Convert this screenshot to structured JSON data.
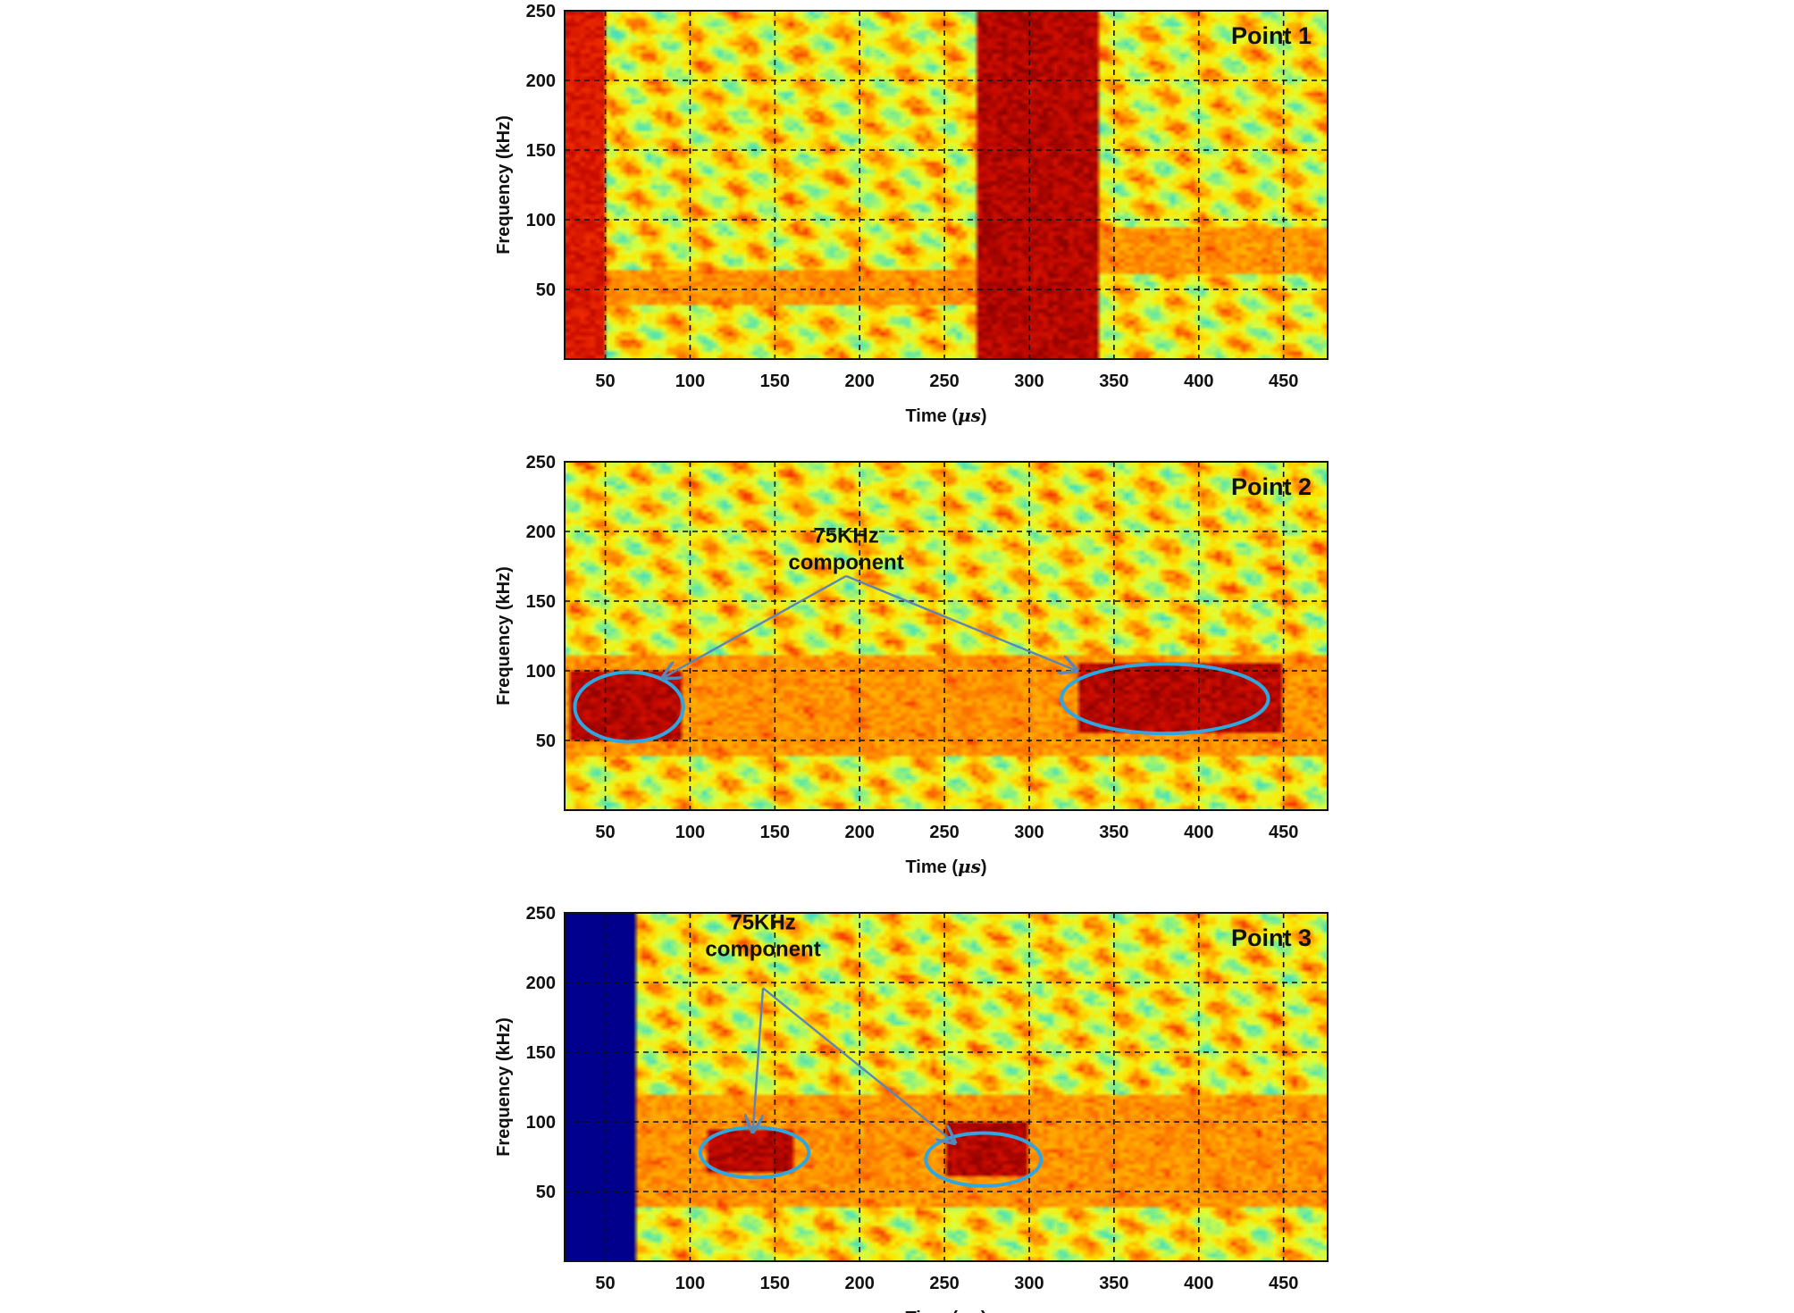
{
  "chart_data": [
    {
      "type": "heatmap",
      "title": "Point 1",
      "xlabel_text": "Time (",
      "xlabel_unit": "μs",
      "xlabel_close": ")",
      "ylabel": "Frequency (kHz)",
      "xlim": [
        26,
        476
      ],
      "ylim": [
        0,
        250
      ],
      "xticks": [
        50,
        100,
        150,
        200,
        250,
        300,
        350,
        400,
        450
      ],
      "yticks": [
        50,
        100,
        150,
        200,
        250
      ],
      "grid": true,
      "colormap": "jet",
      "regions": [
        {
          "t": [
            26,
            50
          ],
          "f": [
            0,
            250
          ],
          "level": 0.9
        },
        {
          "t": [
            26,
            270
          ],
          "f": [
            40,
            65
          ],
          "level": 0.75
        },
        {
          "t": [
            270,
            340
          ],
          "f": [
            0,
            250
          ],
          "level": 0.95
        },
        {
          "t": [
            340,
            476
          ],
          "f": [
            60,
            95
          ],
          "level": 0.75
        }
      ],
      "annotations": []
    },
    {
      "type": "heatmap",
      "title": "Point 2",
      "xlabel_text": "Time (",
      "xlabel_unit": "μs",
      "xlabel_close": ")",
      "ylabel": "Frequency (kHz)",
      "xlim": [
        26,
        476
      ],
      "ylim": [
        0,
        250
      ],
      "xticks": [
        50,
        100,
        150,
        200,
        250,
        300,
        350,
        400,
        450
      ],
      "yticks": [
        50,
        100,
        150,
        200,
        250
      ],
      "grid": true,
      "colormap": "jet",
      "regions": [
        {
          "t": [
            30,
            95
          ],
          "f": [
            50,
            100
          ],
          "level": 0.95
        },
        {
          "t": [
            330,
            450
          ],
          "f": [
            55,
            105
          ],
          "level": 0.95
        },
        {
          "t": [
            26,
            476
          ],
          "f": [
            40,
            110
          ],
          "level": 0.75
        }
      ],
      "annotations": [
        {
          "text_lines": [
            "75KHz",
            "component"
          ],
          "text_at": [
            192,
            192
          ],
          "arrow_from": [
            192,
            168
          ],
          "targets": [
            [
              84,
              95
            ],
            [
              328,
              100
            ]
          ],
          "ellipses": [
            {
              "cx": 64,
              "cy": 74,
              "rx": 32,
              "ry": 25
            },
            {
              "cx": 380,
              "cy": 80,
              "rx": 61,
              "ry": 25
            }
          ]
        }
      ]
    },
    {
      "type": "heatmap",
      "title": "Point 3",
      "xlabel_text": "Time (",
      "xlabel_unit": "μs",
      "xlabel_close": ")",
      "ylabel": "Frequency (kHz)",
      "xlim": [
        26,
        476
      ],
      "ylim": [
        0,
        250
      ],
      "xticks": [
        50,
        100,
        150,
        200,
        250,
        300,
        350,
        400,
        450
      ],
      "yticks": [
        50,
        100,
        150,
        200,
        250
      ],
      "grid": true,
      "colormap": "jet",
      "regions": [
        {
          "t": [
            26,
            68
          ],
          "f": [
            0,
            250
          ],
          "level": 0.0
        },
        {
          "t": [
            110,
            160
          ],
          "f": [
            65,
            95
          ],
          "level": 0.95
        },
        {
          "t": [
            250,
            300
          ],
          "f": [
            60,
            100
          ],
          "level": 0.95
        },
        {
          "t": [
            68,
            476
          ],
          "f": [
            40,
            120
          ],
          "level": 0.75
        }
      ],
      "annotations": [
        {
          "text_lines": [
            "75KHz",
            "component"
          ],
          "text_at": [
            143,
            238
          ],
          "arrow_from": [
            143,
            196
          ],
          "targets": [
            [
              137,
              93
            ],
            [
              256,
              85
            ]
          ],
          "ellipses": [
            {
              "cx": 138,
              "cy": 78,
              "rx": 32,
              "ry": 18
            },
            {
              "cx": 273,
              "cy": 73,
              "rx": 34,
              "ry": 19
            }
          ]
        }
      ]
    }
  ]
}
